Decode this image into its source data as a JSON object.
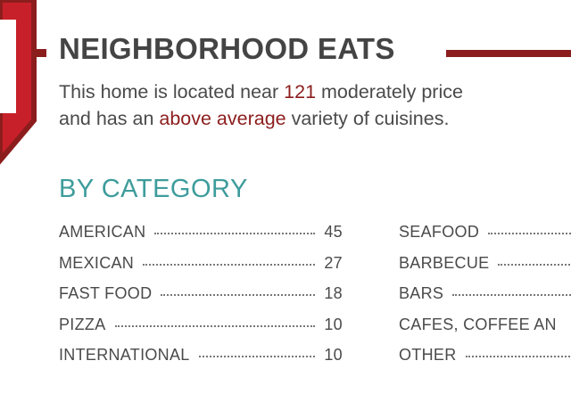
{
  "header": {
    "title": "NEIGHBORHOOD EATS"
  },
  "description": {
    "part1": "This home is located near ",
    "restaurant_count": "121",
    "part2": " moderately price",
    "part3": "and has an ",
    "variety": "above average",
    "part4": " variety of cuisines."
  },
  "by_category": {
    "heading": "BY CATEGORY",
    "left_items": [
      {
        "name": "AMERICAN",
        "count": "45"
      },
      {
        "name": "MEXICAN",
        "count": "27"
      },
      {
        "name": "FAST FOOD",
        "count": "18"
      },
      {
        "name": "PIZZA",
        "count": "10"
      },
      {
        "name": "INTERNATIONAL",
        "count": "10"
      }
    ],
    "right_items": [
      {
        "name": "SEAFOOD"
      },
      {
        "name": "BARBECUE"
      },
      {
        "name": "BARS"
      },
      {
        "name": "CAFES, COFFEE AN"
      },
      {
        "name": "OTHER"
      }
    ]
  },
  "colors": {
    "accent_red": "#8c1d1d",
    "badge_red": "#c8202a",
    "heading_teal": "#3e9c9c",
    "text_gray": "#4a4a4a"
  }
}
